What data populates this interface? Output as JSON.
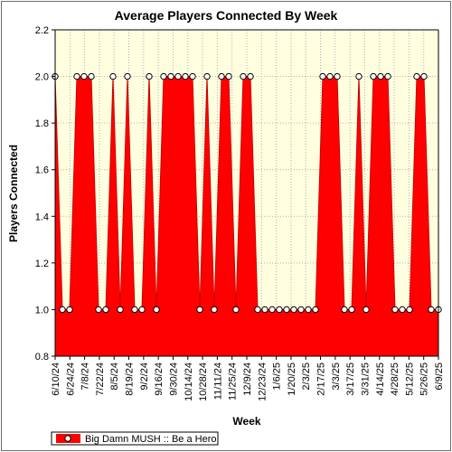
{
  "chart_data": {
    "type": "area",
    "title": "Average Players Connected By Week",
    "xlabel": "Week",
    "ylabel": "Players Connected",
    "ylim": [
      0.8,
      2.2
    ],
    "yticks": [
      "0.8",
      "1.0",
      "1.2",
      "1.4",
      "1.6",
      "1.8",
      "2.0",
      "2.2"
    ],
    "x_tick_labels": [
      "6/10/24",
      "6/24/24",
      "7/8/24",
      "7/22/24",
      "8/5/24",
      "8/19/24",
      "9/2/24",
      "9/16/24",
      "9/30/24",
      "10/14/24",
      "10/28/24",
      "11/11/24",
      "11/25/24",
      "12/9/24",
      "12/23/24",
      "1/6/25",
      "1/20/25",
      "2/3/25",
      "2/17/25",
      "3/3/25",
      "3/17/25",
      "3/31/25",
      "4/14/25",
      "4/28/25",
      "5/12/25",
      "5/26/25",
      "6/9/25"
    ],
    "grid": true,
    "legend_position": "bottom-left",
    "series": [
      {
        "name": "Big Damn MUSH :: Be a Hero",
        "color": "#ff0000",
        "values": [
          2,
          1,
          1,
          2,
          2,
          2,
          1,
          1,
          2,
          1,
          2,
          1,
          1,
          2,
          1,
          2,
          2,
          2,
          2,
          2,
          1,
          2,
          1,
          2,
          2,
          1,
          2,
          2,
          1,
          1,
          1,
          1,
          1,
          1,
          1,
          1,
          1,
          2,
          2,
          2,
          1,
          1,
          2,
          1,
          2,
          2,
          2,
          1,
          1,
          1,
          2,
          2,
          1,
          1
        ]
      }
    ]
  }
}
